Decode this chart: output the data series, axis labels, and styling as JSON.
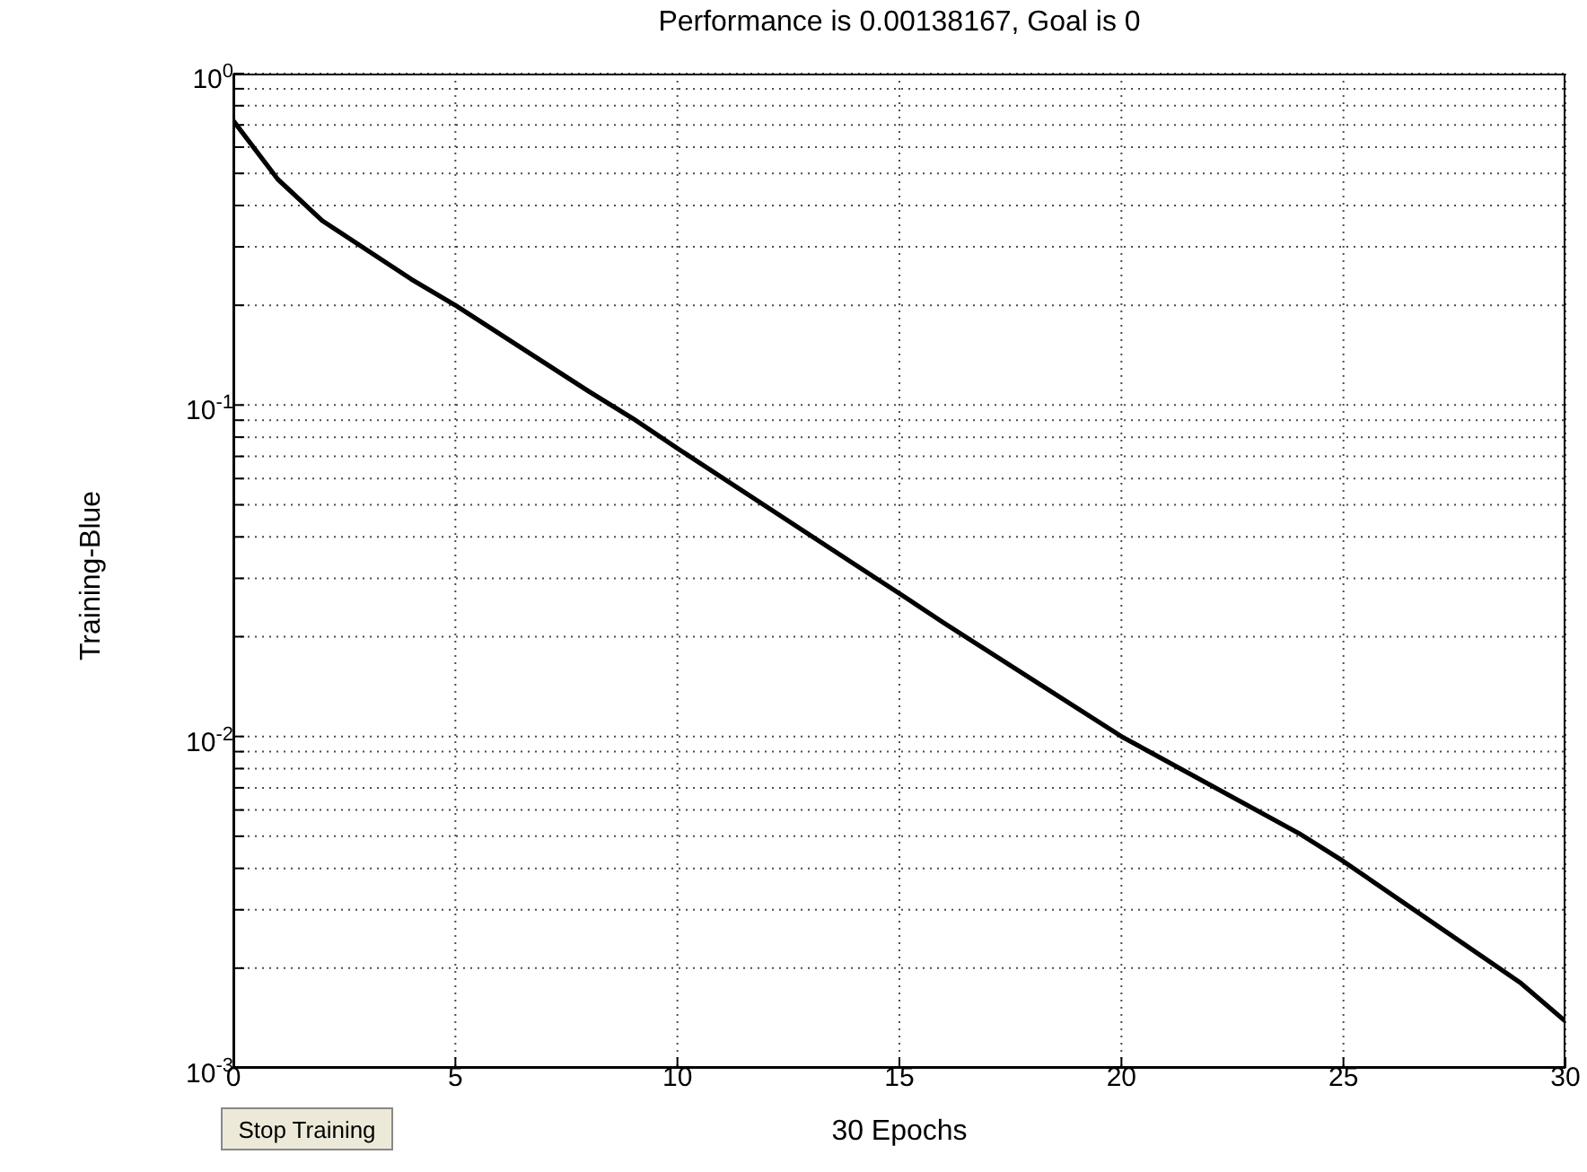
{
  "chart_data": {
    "type": "line",
    "title": "Performance is 0.00138167, Goal is 0",
    "xlabel": "30 Epochs",
    "ylabel": "Training-Blue",
    "x": [
      0,
      1,
      2,
      4,
      5,
      8,
      9,
      10,
      14,
      15,
      16,
      20,
      24,
      25,
      29,
      30
    ],
    "series": [
      {
        "color": "#000000",
        "values": [
          0.72,
          0.48,
          0.36,
          0.24,
          0.2,
          0.11,
          0.091,
          0.074,
          0.033,
          0.027,
          0.022,
          0.01,
          0.0051,
          0.0042,
          0.0018,
          0.00138167
        ]
      }
    ],
    "log": "y",
    "xlim": [
      0,
      30
    ],
    "xticks": [
      0,
      5,
      10,
      15,
      20,
      25,
      30
    ],
    "ylim": [
      0.001,
      1
    ],
    "yticks": [
      {
        "value": 0.001,
        "label": "10$^{-3}$"
      },
      {
        "value": 0.002,
        "label": null
      },
      {
        "value": 0.003,
        "label": null
      },
      {
        "value": 0.004,
        "label": null
      },
      {
        "value": 0.005,
        "label": null
      },
      {
        "value": 0.006,
        "label": null
      },
      {
        "value": 0.007,
        "label": null
      },
      {
        "value": 0.008,
        "label": null
      },
      {
        "value": 0.009,
        "label": null
      },
      {
        "value": 0.01,
        "label": "10$^{-2}$"
      },
      {
        "value": 0.02,
        "label": null
      },
      {
        "value": 0.03,
        "label": null
      },
      {
        "value": 0.04,
        "label": null
      },
      {
        "value": 0.05,
        "label": null
      },
      {
        "value": 0.06,
        "label": null
      },
      {
        "value": 0.07,
        "label": null
      },
      {
        "value": 0.08,
        "label": null
      },
      {
        "value": 0.09,
        "label": null
      },
      {
        "value": 0.1,
        "label": "10$^{-1}$"
      },
      {
        "value": 0.2,
        "label": null
      },
      {
        "value": 0.3,
        "label": null
      },
      {
        "value": 0.4,
        "label": null
      },
      {
        "value": 0.5,
        "label": null
      },
      {
        "value": 0.6,
        "label": null
      },
      {
        "value": 0.7,
        "label": null
      },
      {
        "value": 0.8,
        "label": null
      },
      {
        "value": 0.9,
        "label": null
      },
      {
        "value": 1,
        "label": "10$^{0}$"
      }
    ],
    "grid": true,
    "marker": "none",
    "line_style": "solid",
    "annotations": [
      "Stop Training"
    ]
  }
}
